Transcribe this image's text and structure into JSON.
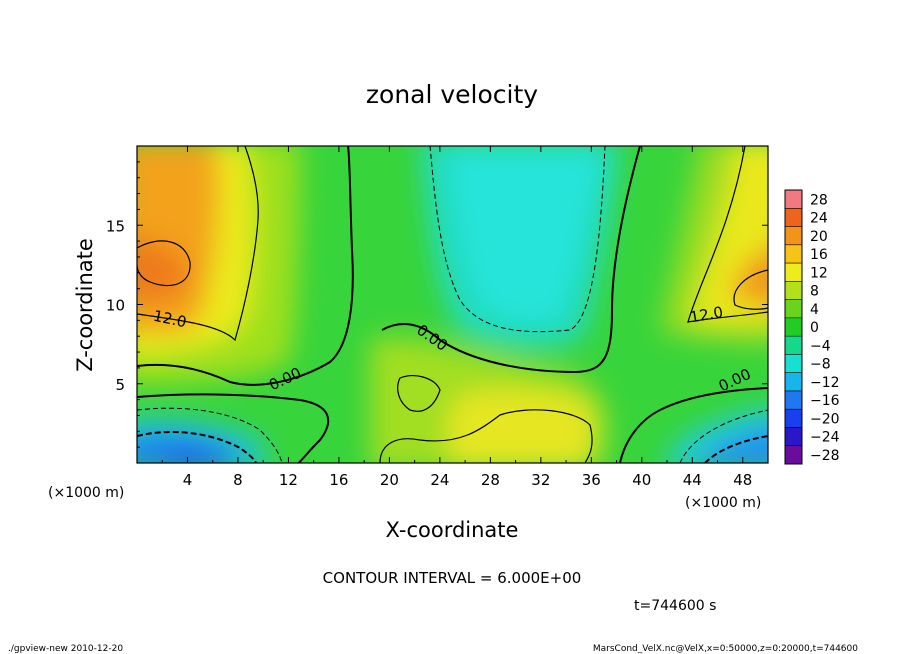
{
  "chart_data": {
    "type": "heatmap",
    "title": "zonal velocity",
    "xlabel": "X-coordinate",
    "ylabel": "Z-coordinate",
    "x_unit": "(×1000 m)",
    "y_unit": "(×1000 m)",
    "xlim": [
      0,
      50
    ],
    "ylim": [
      0,
      20
    ],
    "x_ticks": [
      4,
      8,
      12,
      16,
      20,
      24,
      28,
      32,
      36,
      40,
      44,
      48
    ],
    "y_ticks": [
      5,
      10,
      15
    ],
    "colorbar": {
      "levels": [
        -28,
        -24,
        -20,
        -16,
        -12,
        -8,
        -4,
        0,
        4,
        8,
        12,
        16,
        20,
        24,
        28
      ],
      "labels": [
        "28",
        "24",
        "20",
        "16",
        "12",
        "8",
        "4",
        "0",
        "−4",
        "−8",
        "−12",
        "−16",
        "−20",
        "−24",
        "−28"
      ],
      "colors": [
        "#6a0d9e",
        "#2a18c8",
        "#1a3ff0",
        "#1f78f0",
        "#18b4ec",
        "#18e0d0",
        "#16d88a",
        "#22cc22",
        "#6ad41c",
        "#b4e01a",
        "#ecec1e",
        "#f6c416",
        "#f2941a",
        "#ee641c",
        "#f07a80"
      ]
    },
    "contour_interval": "CONTOUR INTERVAL = 6.000E+00",
    "contour_labels": [
      {
        "text": "12.0",
        "x": 2.0,
        "z": 8.9
      },
      {
        "text": "0.00",
        "x": 12.5,
        "z": 5.8
      },
      {
        "text": "0.00",
        "x": 23.0,
        "z": 7.5
      },
      {
        "text": "12.0",
        "x": 45.0,
        "z": 9.3
      },
      {
        "text": "0.00",
        "x": 47.3,
        "z": 5.3
      }
    ],
    "time_label": "t=744600 s",
    "footer_left": "./gpview-new  2010-12-20",
    "footer_right": "MarsCond_VelX.nc@VelX,x=0:50000,z=0:20000,t=744600"
  }
}
